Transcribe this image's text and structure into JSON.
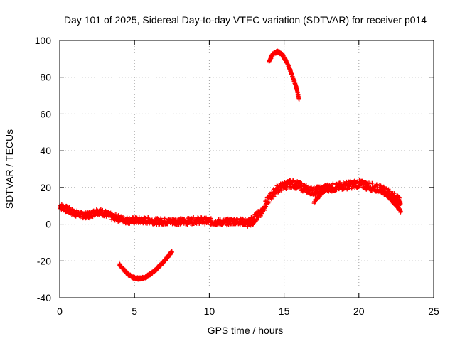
{
  "chart_data": {
    "type": "scatter",
    "title": "Day 101 of 2025, Sidereal Day-to-day VTEC variation (SDTVAR) for receiver p014",
    "xlabel": "GPS time / hours",
    "ylabel": "SDTVAR / TECUs",
    "xlim": [
      0,
      25
    ],
    "ylim": [
      -40,
      100
    ],
    "x_ticks": [
      0,
      5,
      10,
      15,
      20,
      25
    ],
    "y_ticks": [
      -40,
      -20,
      0,
      20,
      40,
      60,
      80,
      100
    ],
    "x_tick_labels": [
      "0",
      "5",
      "10",
      "15",
      "20",
      "25"
    ],
    "y_tick_labels": [
      "-40",
      "-20",
      "0",
      "20",
      "40",
      "60",
      "80",
      "100"
    ],
    "grid": true,
    "marker": "plus",
    "color": "#ff0000",
    "series": [
      {
        "name": "arc-main-low",
        "x": [
          0,
          0.5,
          1.0,
          1.5,
          2.0,
          2.5,
          3.0,
          3.5,
          4.0,
          4.5,
          5.0,
          5.5,
          6.0,
          6.5,
          7.0,
          7.5,
          8.0,
          8.5,
          9.0,
          9.5,
          10.0,
          10.5,
          11.0,
          11.5,
          12.0,
          12.5,
          13.0
        ],
        "y": [
          10,
          8,
          6,
          5,
          5,
          7,
          6,
          4,
          3,
          2,
          2,
          2,
          2,
          1.5,
          1.5,
          1.5,
          1.5,
          1.5,
          2,
          2,
          1.5,
          1,
          1,
          1.5,
          1.5,
          1,
          1
        ],
        "spread": 1.8
      },
      {
        "name": "arc-rise",
        "x": [
          12.5,
          13.0,
          13.5,
          14.0,
          14.5,
          15.0,
          15.5,
          16.0,
          16.5,
          17.0,
          17.5,
          18.0,
          18.5,
          19.0,
          19.5,
          20.0,
          20.5,
          21.0,
          21.5,
          22.0,
          22.5,
          22.8
        ],
        "y": [
          0,
          3,
          7,
          14,
          19,
          21,
          22,
          21,
          19,
          18,
          19,
          20,
          20,
          21,
          21.5,
          22,
          21,
          20,
          19,
          17,
          14,
          12
        ],
        "spread": 2.2
      },
      {
        "name": "arc-lower-left",
        "x": [
          4.0,
          4.3,
          4.6,
          4.9,
          5.2,
          5.5,
          5.8,
          6.1,
          6.4,
          6.7,
          7.0,
          7.3,
          7.5
        ],
        "y": [
          -22,
          -25,
          -27.5,
          -29,
          -29.5,
          -29.5,
          -28.5,
          -27,
          -25,
          -22.5,
          -20,
          -17,
          -15
        ],
        "spread": 0.6
      },
      {
        "name": "arc-high",
        "x": [
          14.0,
          14.3,
          14.6,
          14.9,
          15.2,
          15.5,
          15.8,
          16.0
        ],
        "y": [
          89,
          93,
          94,
          92,
          88,
          82,
          75,
          68
        ],
        "spread": 0.6
      },
      {
        "name": "arc-dip",
        "x": [
          17.0,
          17.4,
          17.8,
          18.2
        ],
        "y": [
          12,
          16,
          19,
          20
        ],
        "spread": 0.6
      },
      {
        "name": "arc-tail",
        "x": [
          21.5,
          22.0,
          22.4,
          22.8
        ],
        "y": [
          19,
          15,
          11,
          7
        ],
        "spread": 0.8
      }
    ]
  }
}
